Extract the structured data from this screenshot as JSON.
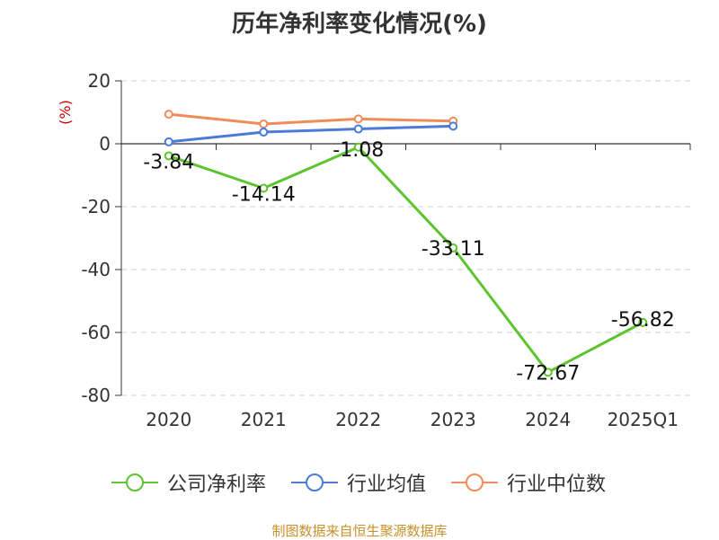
{
  "chart_data": {
    "type": "line",
    "title": "历年净利率变化情况(%)",
    "ylabel": "(%)",
    "xlabel": "",
    "categories": [
      "2020",
      "2021",
      "2022",
      "2023",
      "2024",
      "2025Q1"
    ],
    "ylim": [
      -80,
      20
    ],
    "yticks": [
      "20",
      "0",
      "-20",
      "-40",
      "-60",
      "-80"
    ],
    "grid": true,
    "legend_position": "bottom",
    "series": [
      {
        "name": "公司净利率",
        "color": "#5cc42c",
        "values": [
          -3.84,
          -14.14,
          -1.08,
          -33.11,
          -72.67,
          -56.82
        ],
        "labels": [
          "-3.84",
          "-14.14",
          "-1.08",
          "-33.11",
          "-72.67",
          "-56.82"
        ]
      },
      {
        "name": "行业均值",
        "color": "#4a7bd8",
        "values": [
          0.6,
          3.7,
          4.7,
          5.6,
          null,
          null
        ]
      },
      {
        "name": "行业中位数",
        "color": "#f08c5a",
        "values": [
          9.4,
          6.3,
          7.9,
          7.2,
          null,
          null
        ]
      }
    ]
  },
  "source": "制图数据来自恒生聚源数据库"
}
